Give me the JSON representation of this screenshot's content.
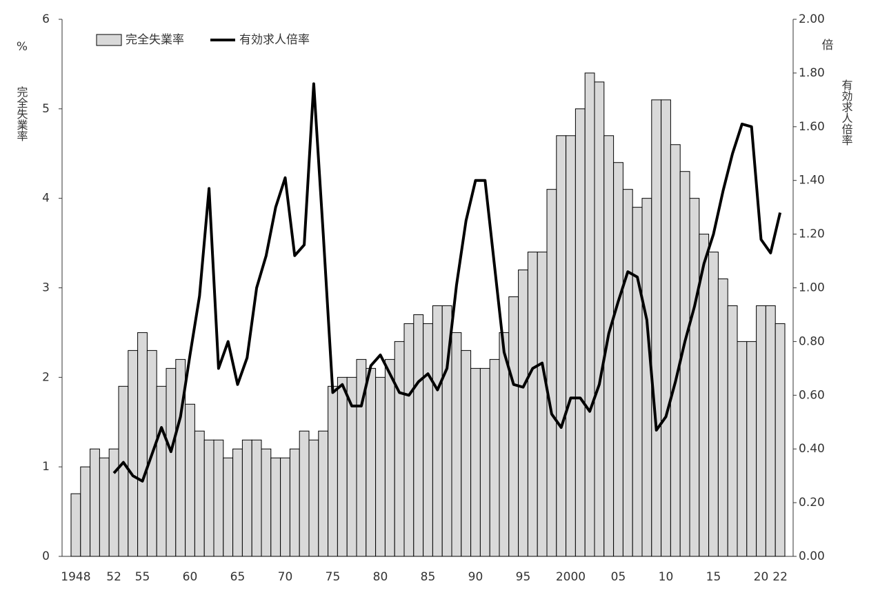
{
  "chart_data": {
    "type": "bar_line",
    "y_label": "完全失業率",
    "y_unit": "%",
    "y2_label": "有効求人倍率",
    "y2_unit": "倍",
    "legend": "upper left",
    "categories": [
      "1948",
      null,
      null,
      null,
      "52",
      null,
      null,
      "55",
      null,
      null,
      null,
      null,
      "60",
      null,
      null,
      null,
      null,
      "65",
      null,
      null,
      null,
      null,
      "70",
      null,
      null,
      null,
      null,
      "75",
      null,
      null,
      null,
      null,
      "80",
      null,
      null,
      null,
      null,
      "85",
      null,
      null,
      null,
      null,
      "90",
      null,
      null,
      null,
      null,
      "95",
      null,
      null,
      null,
      null,
      "2000",
      null,
      null,
      null,
      null,
      "05",
      null,
      null,
      null,
      null,
      "10",
      null,
      null,
      null,
      null,
      "15",
      null,
      null,
      null,
      null,
      "20",
      null,
      "22"
    ],
    "series": [
      {
        "name": "完全失業率",
        "type": "bar",
        "axis": "y",
        "color": "#d9d9d9",
        "edgecolor": "#000000",
        "values": [
          0.7,
          1.0,
          1.2,
          1.1,
          1.2,
          1.9,
          2.3,
          2.5,
          2.3,
          1.9,
          2.1,
          2.2,
          1.7,
          1.4,
          1.3,
          1.3,
          1.1,
          1.2,
          1.3,
          1.3,
          1.2,
          1.1,
          1.1,
          1.2,
          1.4,
          1.3,
          1.4,
          1.9,
          2.0,
          2.0,
          2.2,
          2.1,
          2.0,
          2.2,
          2.4,
          2.6,
          2.7,
          2.6,
          2.8,
          2.8,
          2.5,
          2.3,
          2.1,
          2.1,
          2.2,
          2.5,
          2.9,
          3.2,
          3.4,
          3.4,
          4.1,
          4.7,
          4.7,
          5.0,
          5.4,
          5.3,
          4.7,
          4.4,
          4.1,
          3.9,
          4.0,
          5.1,
          5.1,
          4.6,
          4.3,
          4.0,
          3.6,
          3.4,
          3.1,
          2.8,
          2.4,
          2.4,
          2.8,
          2.8,
          2.6
        ]
      },
      {
        "name": "有効求人倍率",
        "type": "line",
        "axis": "y2",
        "color": "#000000",
        "values": [
          null,
          null,
          null,
          null,
          0.31,
          0.35,
          0.3,
          0.28,
          0.38,
          0.48,
          0.39,
          0.52,
          0.75,
          0.97,
          1.37,
          0.7,
          0.8,
          0.64,
          0.74,
          1.0,
          1.12,
          1.3,
          1.41,
          1.12,
          1.16,
          1.76,
          1.2,
          0.61,
          0.64,
          0.56,
          0.56,
          0.71,
          0.75,
          0.68,
          0.61,
          0.6,
          0.65,
          0.68,
          0.62,
          0.7,
          1.01,
          1.25,
          1.4,
          1.4,
          1.08,
          0.76,
          0.64,
          0.63,
          0.7,
          0.72,
          0.53,
          0.48,
          0.59,
          0.59,
          0.54,
          0.64,
          0.83,
          0.95,
          1.06,
          1.04,
          0.88,
          0.47,
          0.52,
          0.65,
          0.8,
          0.93,
          1.09,
          1.2,
          1.36,
          1.5,
          1.61,
          1.6,
          1.18,
          1.13,
          1.28
        ]
      }
    ],
    "ylim": [
      0,
      6
    ],
    "yticks": [
      0,
      1,
      2,
      3,
      4,
      5,
      6
    ],
    "y2lim": [
      0,
      2
    ],
    "y2ticks": [
      {
        "value": 0,
        "label": "0.00"
      },
      {
        "value": 0.2,
        "label": "0.20"
      },
      {
        "value": 0.4,
        "label": "0.40"
      },
      {
        "value": 0.6,
        "label": "0.60"
      },
      {
        "value": 0.8,
        "label": "0.80"
      },
      {
        "value": 1.0,
        "label": "1.00"
      },
      {
        "value": 1.2,
        "label": "1.20"
      },
      {
        "value": 1.4,
        "label": "1.40"
      },
      {
        "value": 1.6,
        "label": "1.60"
      },
      {
        "value": 1.8,
        "label": "1.80"
      },
      {
        "value": 2.0,
        "label": "2.00"
      }
    ]
  }
}
